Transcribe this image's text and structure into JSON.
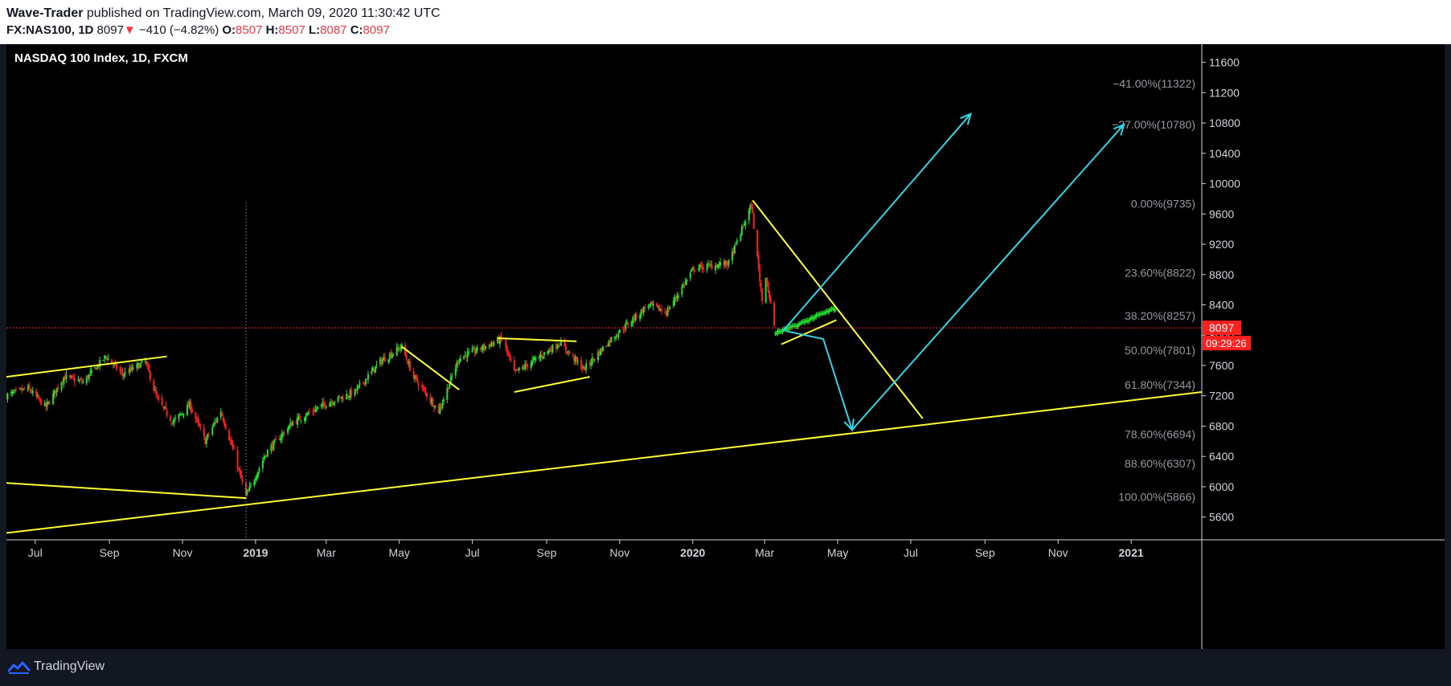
{
  "header": {
    "author": "Wave-Trader",
    "published_text": " published on TradingView.com, March 09, 2020 11:30:42 UTC",
    "symbol": "FX:NAS100, 1D",
    "last": "8097",
    "arrow": "▼",
    "change": "−410 (−4.82%)",
    "o_label": "O:",
    "o_value": "8507",
    "h_label": "H:",
    "h_value": "8507",
    "l_label": "L:",
    "l_value": "8087",
    "c_label": "C:",
    "c_value": "8097"
  },
  "footer": {
    "brand": "TradingView"
  },
  "colors": {
    "up": "#22e02e",
    "down": "#ff1e1e",
    "trend": "#ffff33",
    "projection": "#2fd6e8",
    "price_line": "#ff2020",
    "bg": "#000000",
    "accent": "#2962ff"
  },
  "chart_data": {
    "type": "candlestick",
    "title": "NASDAQ 100 Index, 1D, FXCM",
    "last_price": 8097,
    "last_price_label": "8097",
    "countdown": "09:29:26",
    "x_ticks": [
      {
        "label": "Jul",
        "date": "2018-07-01"
      },
      {
        "label": "Sep",
        "date": "2018-09-01"
      },
      {
        "label": "Nov",
        "date": "2018-11-01"
      },
      {
        "label": "2019",
        "date": "2019-01-01"
      },
      {
        "label": "Mar",
        "date": "2019-03-01"
      },
      {
        "label": "May",
        "date": "2019-05-01"
      },
      {
        "label": "Jul",
        "date": "2019-07-01"
      },
      {
        "label": "Sep",
        "date": "2019-09-01"
      },
      {
        "label": "Nov",
        "date": "2019-11-01"
      },
      {
        "label": "2020",
        "date": "2020-01-01"
      },
      {
        "label": "Mar",
        "date": "2020-03-01"
      },
      {
        "label": "May",
        "date": "2020-05-01"
      },
      {
        "label": "Jul",
        "date": "2020-07-01"
      },
      {
        "label": "Sep",
        "date": "2020-09-01"
      },
      {
        "label": "Nov",
        "date": "2020-11-01"
      },
      {
        "label": "2021",
        "date": "2021-01-01"
      }
    ],
    "y_ticks": [
      "11600",
      "11200",
      "10800",
      "10400",
      "10000",
      "9600",
      "9200",
      "8800",
      "8400",
      "8000",
      "7600",
      "7200",
      "6800",
      "6400",
      "6000",
      "5600"
    ],
    "ylim": [
      5300,
      11840
    ],
    "fib_levels": [
      {
        "label": "−41.00%(11322)",
        "price": 11322
      },
      {
        "label": "−27.00%(10780)",
        "price": 10780
      },
      {
        "label": "0.00%(9735)",
        "price": 9735
      },
      {
        "label": "23.60%(8822)",
        "price": 8822
      },
      {
        "label": "38.20%(8257)",
        "price": 8257
      },
      {
        "label": "50.00%(7801)",
        "price": 7801
      },
      {
        "label": "61.80%(7344)",
        "price": 7344
      },
      {
        "label": "78.60%(6694)",
        "price": 6694
      },
      {
        "label": "88.60%(6307)",
        "price": 6307
      },
      {
        "label": "100.00%(5866)",
        "price": 5866
      }
    ],
    "price_path": [
      [
        "2018-06-07",
        7200
      ],
      [
        "2018-06-25",
        7300
      ],
      [
        "2018-07-10",
        7050
      ],
      [
        "2018-07-25",
        7450
      ],
      [
        "2018-08-10",
        7380
      ],
      [
        "2018-08-29",
        7720
      ],
      [
        "2018-09-12",
        7480
      ],
      [
        "2018-10-01",
        7650
      ],
      [
        "2018-10-11",
        7150
      ],
      [
        "2018-10-24",
        6850
      ],
      [
        "2018-11-07",
        7080
      ],
      [
        "2018-11-20",
        6600
      ],
      [
        "2018-12-03",
        7000
      ],
      [
        "2018-12-14",
        6450
      ],
      [
        "2018-12-24",
        5870
      ],
      [
        "2019-01-10",
        6450
      ],
      [
        "2019-02-01",
        6850
      ],
      [
        "2019-03-01",
        7100
      ],
      [
        "2019-03-25",
        7250
      ],
      [
        "2019-04-15",
        7650
      ],
      [
        "2019-05-03",
        7850
      ],
      [
        "2019-05-13",
        7450
      ],
      [
        "2019-06-03",
        7000
      ],
      [
        "2019-06-20",
        7700
      ],
      [
        "2019-07-26",
        7950
      ],
      [
        "2019-08-05",
        7500
      ],
      [
        "2019-08-20",
        7650
      ],
      [
        "2019-09-12",
        7900
      ],
      [
        "2019-10-02",
        7550
      ],
      [
        "2019-10-25",
        7950
      ],
      [
        "2019-11-25",
        8400
      ],
      [
        "2019-12-10",
        8300
      ],
      [
        "2020-01-02",
        8880
      ],
      [
        "2020-01-31",
        8950
      ],
      [
        "2020-02-19",
        9720
      ],
      [
        "2020-02-28",
        8450
      ],
      [
        "2020-03-02",
        8800
      ],
      [
        "2020-03-09",
        8097
      ]
    ],
    "drawings": {
      "trendlines": [
        {
          "from": [
            "2018-06-07",
            7450
          ],
          "to": [
            "2018-10-19",
            7720
          ]
        },
        {
          "from": [
            "2018-06-07",
            6050
          ],
          "to": [
            "2018-12-24",
            5850
          ]
        },
        {
          "from": [
            "2018-06-07",
            5390
          ],
          "to": [
            "2021-03-01",
            7250
          ]
        },
        {
          "from": [
            "2019-05-03",
            7850
          ],
          "to": [
            "2019-06-20",
            7280
          ]
        },
        {
          "from": [
            "2019-07-22",
            7960
          ],
          "to": [
            "2019-09-26",
            7920
          ]
        },
        {
          "from": [
            "2019-08-05",
            7250
          ],
          "to": [
            "2019-10-07",
            7450
          ]
        },
        {
          "from": [
            "2020-02-20",
            9780
          ],
          "to": [
            "2020-07-11",
            6900
          ]
        },
        {
          "from": [
            "2020-03-15",
            7880
          ],
          "to": [
            "2020-04-30",
            8200
          ]
        }
      ],
      "projections": [
        {
          "points": [
            [
              "2020-03-20",
              8050
            ],
            [
              "2020-04-19",
              7950
            ],
            [
              "2020-05-13",
              6750
            ]
          ]
        },
        {
          "points": [
            [
              "2020-03-16",
              8050
            ],
            [
              "2020-08-20",
              10920
            ]
          ]
        },
        {
          "points": [
            [
              "2020-05-13",
              6750
            ],
            [
              "2020-12-26",
              10780
            ]
          ]
        }
      ],
      "vertical_marker": {
        "date": "2018-12-24",
        "top": 9750
      }
    }
  }
}
